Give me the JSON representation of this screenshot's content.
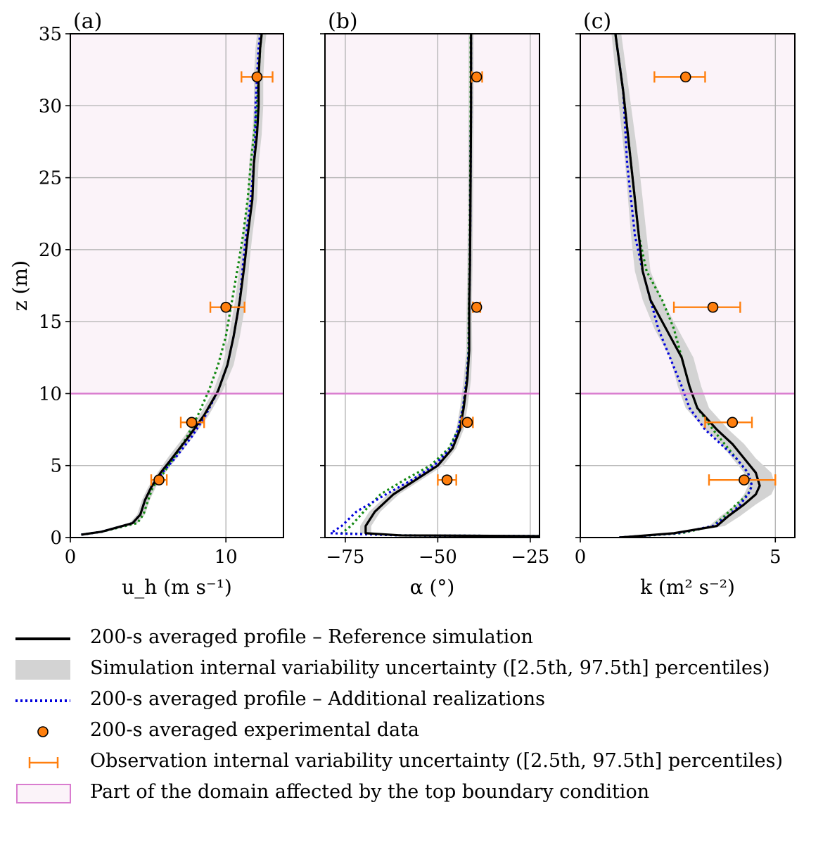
{
  "chart_data": [
    {
      "type": "line",
      "panel_label": "(a)",
      "xlabel": "u_h (m s⁻¹)",
      "ylabel": "z (m)",
      "xlim": [
        0,
        13.7
      ],
      "ylim": [
        0,
        35
      ],
      "xticks": [
        0,
        10
      ],
      "yticks": [
        0,
        5,
        10,
        15,
        20,
        25,
        30,
        35
      ],
      "grid": true,
      "top_bc_height": 10,
      "series": [
        {
          "name": "200-s averaged profile – Reference simulation",
          "style": "solid",
          "x": [
            0.7,
            2.0,
            4.0,
            4.5,
            4.8,
            5.2,
            5.8,
            6.6,
            7.6,
            8.6,
            9.5,
            10.1,
            10.5,
            10.9,
            11.2,
            11.4,
            11.7,
            11.8,
            12.0,
            12.1,
            12.1,
            12.2,
            12.3
          ],
          "y": [
            0.2,
            0.4,
            1.0,
            1.6,
            2.6,
            3.5,
            4.5,
            5.6,
            7.0,
            8.5,
            10.2,
            12.0,
            14.0,
            16.5,
            19.0,
            21.0,
            23.5,
            26.0,
            28.0,
            30.0,
            32.0,
            34.0,
            35.0
          ],
          "band_low": [
            0.5,
            1.8,
            3.8,
            4.3,
            4.6,
            5.0,
            5.6,
            6.3,
            7.3,
            8.3,
            9.2,
            9.8,
            10.2,
            10.6,
            10.9,
            11.1,
            11.4,
            11.5,
            11.7,
            11.8,
            11.8,
            11.9,
            12.0
          ],
          "band_high": [
            0.9,
            2.3,
            4.3,
            4.8,
            5.1,
            5.5,
            6.1,
            6.9,
            7.9,
            8.9,
            9.8,
            10.5,
            10.9,
            11.3,
            11.5,
            11.7,
            12.0,
            12.1,
            12.3,
            12.4,
            12.4,
            12.5,
            12.6
          ]
        },
        {
          "name": "200-s averaged profile – Additional realizations",
          "style": "dotted-blue",
          "x": [
            0.7,
            2.0,
            4.0,
            4.5,
            4.8,
            5.2,
            5.9,
            6.8,
            7.8,
            8.7,
            9.5,
            10.1,
            10.5,
            10.9,
            11.1,
            11.3,
            11.6,
            11.8,
            11.9,
            11.9,
            12.0,
            12.1,
            12.2
          ],
          "y": [
            0.2,
            0.4,
            1.0,
            1.6,
            2.6,
            3.5,
            4.5,
            5.6,
            7.0,
            8.5,
            10.2,
            12.0,
            14.0,
            16.5,
            19.0,
            21.0,
            23.5,
            26.0,
            28.0,
            30.0,
            32.0,
            34.0,
            35.0
          ]
        },
        {
          "name": "",
          "style": "dotted-green",
          "x": [
            0.7,
            2.0,
            4.3,
            4.7,
            5.0,
            5.3,
            6.0,
            6.7,
            7.5,
            8.2,
            8.9,
            9.5,
            10.0,
            10.4,
            10.8,
            11.1,
            11.4,
            11.6,
            11.8,
            12.0,
            12.1,
            12.2,
            12.3
          ],
          "y": [
            0.2,
            0.4,
            1.0,
            1.6,
            2.6,
            3.5,
            4.5,
            5.6,
            7.0,
            8.5,
            10.2,
            12.0,
            14.0,
            16.5,
            19.0,
            21.0,
            23.5,
            26.0,
            28.0,
            30.0,
            32.0,
            34.0,
            35.0
          ]
        }
      ],
      "observations": {
        "z": [
          4,
          8,
          16,
          32
        ],
        "x": [
          5.7,
          7.8,
          10.0,
          12.0
        ],
        "xerr_low": [
          5.2,
          7.1,
          9.0,
          11.0
        ],
        "xerr_high": [
          6.2,
          8.6,
          11.2,
          13.0
        ]
      }
    },
    {
      "type": "line",
      "panel_label": "(b)",
      "xlabel": "α (°)",
      "xlim": [
        -80.5,
        -22.5
      ],
      "ylim": [
        0,
        35
      ],
      "xticks": [
        -75,
        -50,
        -25
      ],
      "yticks": [
        0,
        5,
        10,
        15,
        20,
        25,
        30,
        35
      ],
      "grid": true,
      "top_bc_height": 10,
      "series": [
        {
          "name": "200-s averaged profile – Reference simulation",
          "style": "solid",
          "x": [
            -22.5,
            -60.0,
            -69.5,
            -69.5,
            -67.0,
            -62.0,
            -56.0,
            -50.0,
            -46.0,
            -44.0,
            -43.0,
            -42.0,
            -41.5,
            -41.5,
            -41.3,
            -41.2,
            -41.1,
            -41.0,
            -41.0,
            -41.0
          ],
          "y": [
            0.1,
            0.15,
            0.3,
            0.8,
            1.8,
            3.0,
            4.0,
            5.0,
            6.2,
            7.5,
            9.0,
            11.0,
            13.0,
            16.0,
            19.0,
            22.0,
            26.0,
            30.0,
            33.0,
            35.0
          ],
          "band_low": [
            -22.5,
            -61.0,
            -71.0,
            -71.0,
            -68.5,
            -63.5,
            -57.5,
            -51.5,
            -47.0,
            -45.0,
            -44.0,
            -43.0,
            -42.3,
            -42.2,
            -42.0,
            -41.9,
            -41.8,
            -41.7,
            -41.7,
            -41.7
          ],
          "band_high": [
            -22.5,
            -59.0,
            -68.0,
            -68.0,
            -65.5,
            -60.5,
            -54.5,
            -48.5,
            -45.0,
            -43.0,
            -42.0,
            -41.0,
            -40.7,
            -40.8,
            -40.6,
            -40.5,
            -40.4,
            -40.3,
            -40.3,
            -40.3
          ]
        },
        {
          "name": "200-s averaged profile – Additional realizations",
          "style": "dotted-blue",
          "x": [
            -22.5,
            -60.0,
            -79.0,
            -76.0,
            -72.0,
            -64.0,
            -57.0,
            -51.0,
            -46.5,
            -44.5,
            -43.2,
            -42.2,
            -41.6,
            -41.5,
            -41.3,
            -41.2,
            -41.1,
            -41.0,
            -41.0,
            -41.0
          ],
          "y": [
            0.1,
            0.15,
            0.3,
            0.8,
            1.8,
            3.0,
            4.0,
            5.0,
            6.2,
            7.5,
            9.0,
            11.0,
            13.0,
            16.0,
            19.0,
            22.0,
            26.0,
            30.0,
            33.0,
            35.0
          ]
        },
        {
          "name": "",
          "style": "dotted-green",
          "x": [
            -22.5,
            -60.0,
            -76.0,
            -73.5,
            -70.0,
            -65.5,
            -59.0,
            -52.0,
            -47.0,
            -44.5,
            -43.2,
            -42.2,
            -41.7,
            -41.6,
            -41.4,
            -41.3,
            -41.2,
            -41.1,
            -41.1,
            -41.1
          ],
          "y": [
            0.1,
            0.15,
            0.3,
            0.8,
            1.8,
            3.0,
            4.0,
            5.0,
            6.2,
            7.5,
            9.0,
            11.0,
            13.0,
            16.0,
            19.0,
            22.0,
            26.0,
            30.0,
            33.0,
            35.0
          ]
        }
      ],
      "observations": {
        "z": [
          4,
          8,
          16,
          32
        ],
        "x": [
          -47.5,
          -42.0,
          -39.5,
          -39.5
        ],
        "xerr_low": [
          -50.0,
          -43.5,
          -40.5,
          -40.8
        ],
        "xerr_high": [
          -45.0,
          -40.5,
          -38.5,
          -38.0
        ]
      }
    },
    {
      "type": "line",
      "panel_label": "(c)",
      "xlabel": "k (m² s⁻²)",
      "xlim": [
        0,
        5.5
      ],
      "ylim": [
        0,
        35
      ],
      "xticks": [
        0,
        5
      ],
      "yticks": [
        0,
        5,
        10,
        15,
        20,
        25,
        30,
        35
      ],
      "grid": true,
      "top_bc_height": 10,
      "series": [
        {
          "name": "200-s averaged profile – Reference simulation",
          "style": "solid",
          "x": [
            1.0,
            2.4,
            3.5,
            3.8,
            4.2,
            4.5,
            4.6,
            4.5,
            4.2,
            3.9,
            3.5,
            3.0,
            2.8,
            2.6,
            2.2,
            1.8,
            1.6,
            1.5,
            1.3,
            1.1,
            0.9
          ],
          "y": [
            0.0,
            0.3,
            0.8,
            1.5,
            2.3,
            3.0,
            3.6,
            4.5,
            5.5,
            6.5,
            7.5,
            9.0,
            10.5,
            12.5,
            14.5,
            16.5,
            18.5,
            21.0,
            26.0,
            31.0,
            35.0
          ],
          "band_low": [
            1.0,
            2.3,
            3.3,
            3.6,
            4.0,
            4.2,
            4.3,
            4.2,
            3.9,
            3.6,
            3.2,
            2.7,
            2.5,
            2.3,
            1.9,
            1.6,
            1.4,
            1.3,
            1.15,
            0.95,
            0.8
          ],
          "band_high": [
            1.0,
            2.6,
            3.7,
            4.1,
            4.5,
            4.9,
            5.0,
            4.9,
            4.5,
            4.2,
            3.8,
            3.3,
            3.1,
            2.9,
            2.5,
            2.1,
            1.8,
            1.7,
            1.5,
            1.25,
            1.05
          ]
        },
        {
          "name": "200-s averaged profile – Additional realizations",
          "style": "dotted-blue",
          "x": [
            1.0,
            2.5,
            3.4,
            3.8,
            4.1,
            4.3,
            4.4,
            4.3,
            4.0,
            3.6,
            3.2,
            2.8,
            2.6,
            2.3,
            2.0,
            1.8,
            1.6,
            1.4,
            1.2,
            1.1,
            0.9
          ],
          "y": [
            0.0,
            0.3,
            0.8,
            1.5,
            2.3,
            3.0,
            3.6,
            4.5,
            5.5,
            6.5,
            7.5,
            9.0,
            10.5,
            12.5,
            14.5,
            16.5,
            18.5,
            21.0,
            26.0,
            31.0,
            35.0
          ]
        },
        {
          "name": "",
          "style": "dotted-green",
          "x": [
            1.0,
            2.6,
            3.4,
            3.7,
            4.0,
            4.3,
            4.4,
            4.3,
            4.0,
            3.7,
            3.4,
            3.0,
            2.8,
            2.6,
            2.4,
            2.1,
            1.7,
            1.5,
            1.3,
            1.1,
            0.9
          ],
          "y": [
            0.0,
            0.3,
            0.8,
            1.5,
            2.3,
            3.0,
            3.6,
            4.5,
            5.5,
            6.5,
            7.5,
            9.0,
            10.5,
            12.5,
            14.5,
            16.5,
            18.5,
            21.0,
            26.0,
            31.0,
            35.0
          ]
        }
      ],
      "observations": {
        "z": [
          4,
          8,
          16,
          32
        ],
        "x": [
          4.2,
          3.9,
          3.4,
          2.7
        ],
        "xerr_low": [
          3.3,
          3.2,
          2.4,
          1.9
        ],
        "xerr_high": [
          5.0,
          4.4,
          4.1,
          3.2
        ]
      }
    }
  ],
  "colors": {
    "reference": "#000000",
    "band": "#d3d3d3",
    "realization_blue": "#0000dd",
    "realization_green": "#118811",
    "observation": "#ff7f0e",
    "top_bc": "#d97ccf",
    "top_bc_fill": "#fbf3f9",
    "grid": "#b0b0b0"
  },
  "legend": {
    "items": [
      {
        "key": "reference",
        "label": "200-s averaged profile – Reference simulation"
      },
      {
        "key": "band",
        "label": "Simulation internal variability uncertainty ([2.5th, 97.5th] percentiles)"
      },
      {
        "key": "realizations",
        "label": "200-s averaged profile – Additional realizations"
      },
      {
        "key": "obs-point",
        "label": "200-s averaged experimental data"
      },
      {
        "key": "obs-errorbar",
        "label": "Observation internal variability uncertainty ([2.5th, 97.5th] percentiles)"
      },
      {
        "key": "top-bc",
        "label": "Part of the domain affected by the top boundary condition"
      }
    ]
  }
}
